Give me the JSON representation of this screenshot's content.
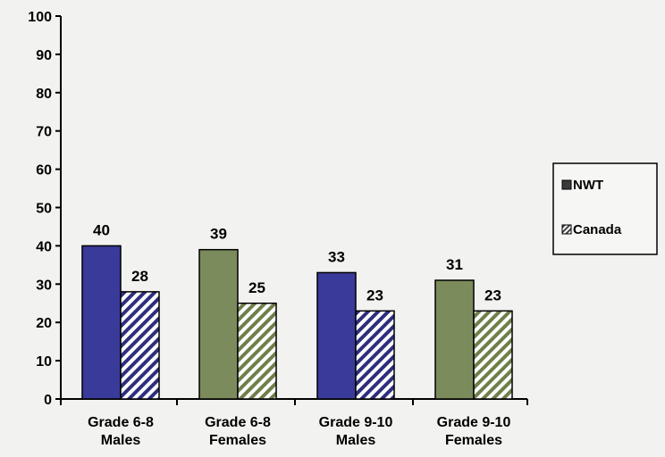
{
  "chart_data": {
    "type": "bar",
    "categories": [
      [
        "Grade 6-8",
        "Males"
      ],
      [
        "Grade 6-8",
        "Females"
      ],
      [
        "Grade 9-10",
        "Males"
      ],
      [
        "Grade 9-10",
        "Females"
      ]
    ],
    "series": [
      {
        "name": "NWT",
        "values": [
          40,
          39,
          33,
          31
        ],
        "colors": [
          "#3a3a9a",
          "#7b8b5b",
          "#3a3a9a",
          "#7b8b5b"
        ],
        "pattern": "solid"
      },
      {
        "name": "Canada",
        "values": [
          28,
          25,
          23,
          23
        ],
        "colors": [
          "#2e2e7e",
          "#6f7f4a",
          "#2e2e7e",
          "#6f7f4a"
        ],
        "pattern": "diagonal-stripes"
      }
    ],
    "y_ticks": [
      0,
      10,
      20,
      30,
      40,
      50,
      60,
      70,
      80,
      90,
      100
    ],
    "ylim": [
      0,
      100
    ],
    "grid": false,
    "legend_position": "right",
    "title": "",
    "xlabel": "",
    "ylabel": ""
  }
}
